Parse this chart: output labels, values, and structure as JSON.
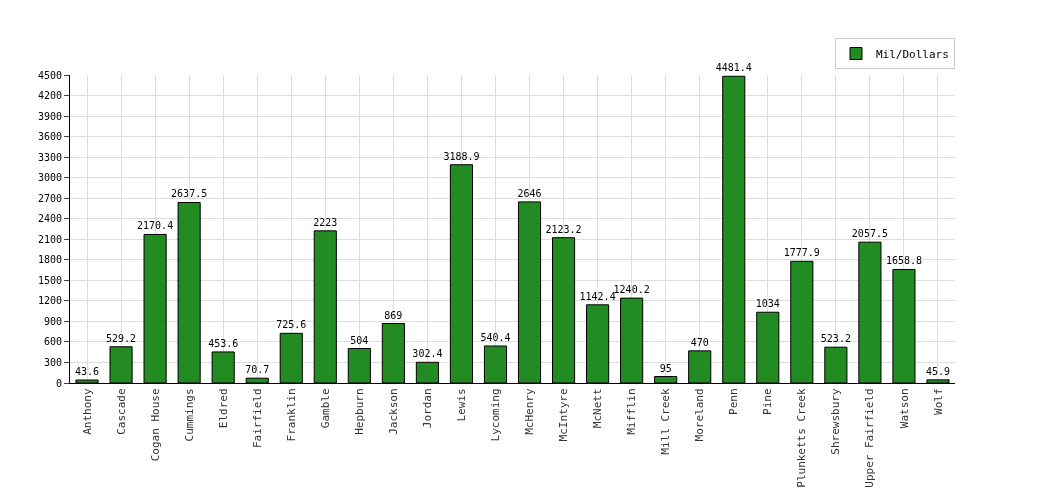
{
  "chart_data": {
    "type": "bar",
    "categories": [
      "Anthony",
      "Cascade",
      "Cogan House",
      "Cummings",
      "Eldred",
      "Fairfield",
      "Franklin",
      "Gamble",
      "Hepburn",
      "Jackson",
      "Jordan",
      "Lewis",
      "Lycoming",
      "McHenry",
      "McIntyre",
      "McNett",
      "Mifflin",
      "Mill Creek",
      "Moreland",
      "Penn",
      "Pine",
      "Plunketts Creek",
      "Shrewsbury",
      "Upper Fairfield",
      "Watson",
      "Wolf"
    ],
    "series": [
      {
        "name": "Mil/Dollars",
        "color": "#228b22",
        "values": [
          43.6,
          529.2,
          2170.4,
          2637.5,
          453.6,
          70.7,
          725.6,
          2223,
          504,
          869,
          302.4,
          3188.9,
          540.4,
          2646,
          2123.2,
          1142.4,
          1240.2,
          95,
          470,
          4481.4,
          1034,
          1777.9,
          523.2,
          2057.5,
          1658.8,
          45.9
        ]
      }
    ],
    "ylim": [
      0,
      4500
    ],
    "yticks": [
      0,
      300,
      600,
      900,
      1200,
      1500,
      1800,
      2100,
      2400,
      2700,
      3000,
      3300,
      3600,
      3900,
      4200,
      4500
    ],
    "grid": true,
    "legend": "top right",
    "data_labels": true
  }
}
